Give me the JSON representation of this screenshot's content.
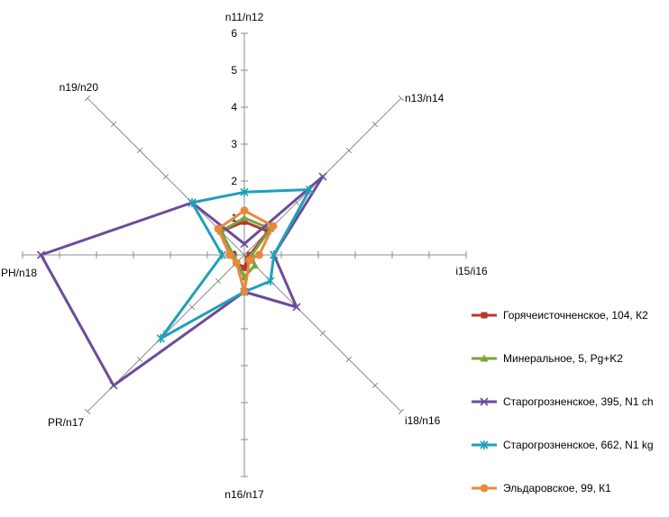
{
  "chart_data": {
    "type": "radar",
    "title": "",
    "axes": [
      "n11/n12",
      "n13/n14",
      "i15/i16",
      "i18/n16",
      "n16/n17",
      "PR/n17",
      "PH/n18",
      "n19/n20"
    ],
    "rlim": [
      0,
      6
    ],
    "ticks": [
      "0",
      "1",
      "2",
      "3",
      "4",
      "5",
      "6"
    ],
    "grid": false,
    "legend_position": "right",
    "series": [
      {
        "name": "Горячеисточненское, 104, К2",
        "color": "#b03a2e",
        "marker": "square",
        "values": [
          0.9,
          0.9,
          0.15,
          0.15,
          0.35,
          0.3,
          0.3,
          0.9
        ]
      },
      {
        "name": "Минеральное, 5, Pg+K2",
        "color": "#7ba23f",
        "marker": "triangle",
        "values": [
          1.0,
          1.0,
          0.2,
          0.4,
          0.6,
          0.3,
          0.3,
          0.9
        ]
      },
      {
        "name": "Старогрозненское, 395, N1 ch",
        "color": "#6b4c9a",
        "marker": "x",
        "values": [
          0.3,
          3.0,
          0.8,
          2.0,
          1.0,
          5.0,
          5.5,
          2.0
        ]
      },
      {
        "name": "Старогрозненское, 662, N1 kg",
        "color": "#1fa0b8",
        "marker": "star",
        "values": [
          1.7,
          2.5,
          0.8,
          1.0,
          1.0,
          3.2,
          0.6,
          2.0
        ]
      },
      {
        "name": "Эльдаровское, 99, К1",
        "color": "#e8893a",
        "marker": "circle",
        "values": [
          1.2,
          1.1,
          0.4,
          0.2,
          1.0,
          0.3,
          0.4,
          1.0
        ]
      }
    ]
  }
}
